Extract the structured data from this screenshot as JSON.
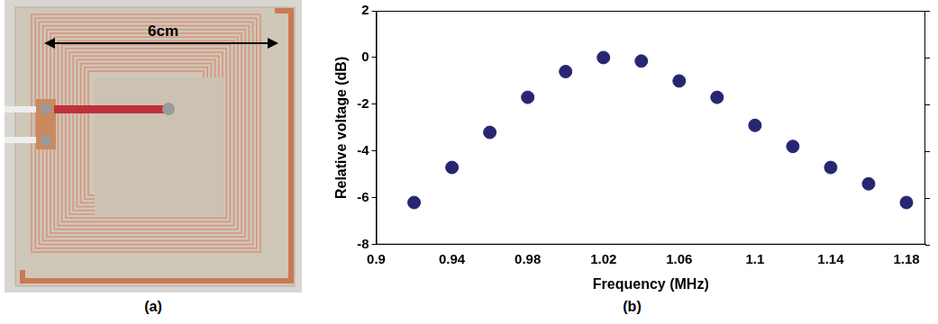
{
  "photo": {
    "annotation": "6cm",
    "caption": "(a)"
  },
  "chart_data": {
    "type": "scatter",
    "caption": "(b)",
    "x_label": "Frequency (MHz)",
    "y_label": "Relative voltage (dB)",
    "x": [
      0.92,
      0.94,
      0.96,
      0.98,
      1.0,
      1.02,
      1.04,
      1.06,
      1.08,
      1.1,
      1.12,
      1.14,
      1.16,
      1.18
    ],
    "values": [
      -6.2,
      -4.7,
      -3.2,
      -1.7,
      -0.6,
      0.0,
      -0.15,
      -1.0,
      -1.7,
      -2.9,
      -3.8,
      -4.7,
      -5.4,
      -6.2
    ],
    "color": "#262673",
    "marker": "circle",
    "xlim": [
      0.9,
      1.19
    ],
    "xticks": [
      0.9,
      0.94,
      0.98,
      1.02,
      1.06,
      1.1,
      1.14,
      1.18
    ],
    "ylim": [
      -8,
      2
    ],
    "yticks": [
      -8,
      -6,
      -4,
      -2,
      0,
      2
    ],
    "grid": false
  }
}
